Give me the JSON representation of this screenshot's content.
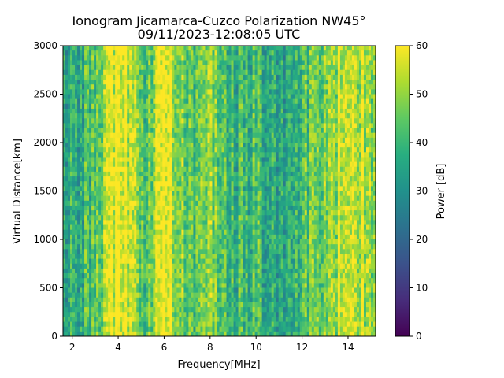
{
  "chart_data": {
    "type": "heatmap",
    "title_line1": "Ionogram Jicamarca-Cuzco Polarization NW45°",
    "title_line2": "09/11/2023-12:08:05 UTC",
    "xlabel": "Frequency[MHz]",
    "ylabel": "Virtual Distance[km]",
    "xlim": [
      1.6,
      15.2
    ],
    "ylim": [
      0,
      3000
    ],
    "xticks": [
      2,
      4,
      6,
      8,
      10,
      12,
      14
    ],
    "yticks": [
      0,
      500,
      1000,
      1500,
      2000,
      2500,
      3000
    ],
    "colorbar": {
      "label": "Power [dB]",
      "min": 0,
      "max": 60,
      "ticks": [
        0,
        10,
        20,
        30,
        40,
        50,
        60
      ],
      "colormap": "viridis"
    },
    "band_profile_db": [
      {
        "f": 1.6,
        "db": 36
      },
      {
        "f": 2.2,
        "db": 38
      },
      {
        "f": 2.9,
        "db": 42
      },
      {
        "f": 3.3,
        "db": 50
      },
      {
        "f": 3.7,
        "db": 57
      },
      {
        "f": 4.3,
        "db": 58
      },
      {
        "f": 4.8,
        "db": 50
      },
      {
        "f": 5.2,
        "db": 44
      },
      {
        "f": 5.7,
        "db": 53
      },
      {
        "f": 6.2,
        "db": 57
      },
      {
        "f": 6.6,
        "db": 52
      },
      {
        "f": 7.0,
        "db": 42
      },
      {
        "f": 7.6,
        "db": 46
      },
      {
        "f": 8.1,
        "db": 51
      },
      {
        "f": 8.6,
        "db": 44
      },
      {
        "f": 9.2,
        "db": 38
      },
      {
        "f": 9.8,
        "db": 41
      },
      {
        "f": 10.3,
        "db": 40
      },
      {
        "f": 10.8,
        "db": 36
      },
      {
        "f": 11.2,
        "db": 31
      },
      {
        "f": 11.6,
        "db": 37
      },
      {
        "f": 12.1,
        "db": 42
      },
      {
        "f": 12.7,
        "db": 46
      },
      {
        "f": 13.2,
        "db": 48
      },
      {
        "f": 13.7,
        "db": 56
      },
      {
        "f": 14.3,
        "db": 55
      },
      {
        "f": 14.8,
        "db": 52
      },
      {
        "f": 15.2,
        "db": 50
      }
    ]
  }
}
